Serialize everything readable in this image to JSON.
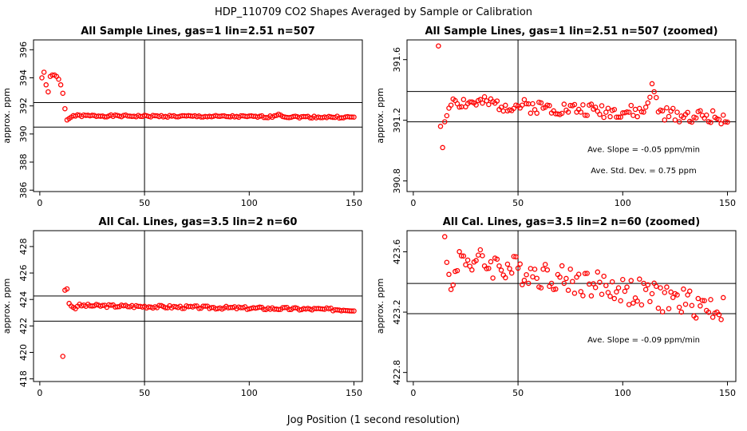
{
  "figure": {
    "title": "HDP_110709  CO2 Shapes Averaged by Sample or Calibration",
    "xlabel": "Jog Position (1 second resolution)"
  },
  "chart_data": [
    {
      "type": "scatter",
      "title": "All Sample Lines, gas=1 lin=2.51 n=507",
      "xlabel": "Jog Position (1 second resolution)",
      "ylabel": "approx. ppm",
      "xlim": [
        -3,
        154
      ],
      "ylim": [
        385.9,
        396.7
      ],
      "xticks": [
        0,
        50,
        100,
        150
      ],
      "yticks": [
        386,
        388,
        390,
        392,
        394,
        396
      ],
      "ref_vline": 50,
      "ref_hlines": [
        390.49,
        392.24
      ],
      "series": [
        {
          "name": "sample",
          "color": "#ff0000",
          "x": [],
          "y": []
        }
      ],
      "seed": 1,
      "annotations": []
    },
    {
      "type": "scatter",
      "title": "All Sample Lines, gas=1 lin=2.51 n=507 (zoomed)",
      "xlabel": "Jog Position (1 second resolution)",
      "ylabel": "approx. ppm",
      "xlim": [
        -3,
        154
      ],
      "ylim": [
        390.73,
        391.73
      ],
      "xticks": [
        0,
        50,
        100,
        150
      ],
      "yticks": [
        390.8,
        391.2,
        391.6
      ],
      "ref_vline": 50,
      "ref_hlines": [
        391.19,
        391.39
      ],
      "series": [
        {
          "name": "sample-zoom",
          "color": "#ff0000",
          "x": [],
          "y": []
        }
      ],
      "seed": 2,
      "annotations": [
        {
          "text": "Ave. Slope =  -0.05  ppm/min",
          "x": 110,
          "y": 390.99
        },
        {
          "text": "Ave. Std. Dev. =  0.75  ppm",
          "x": 110,
          "y": 390.85
        }
      ]
    },
    {
      "type": "scatter",
      "title": "All Cal. Lines, gas=3.5 lin=2 n=60",
      "xlabel": "Jog Position (1 second resolution)",
      "ylabel": "approx. ppm",
      "xlim": [
        -3,
        154
      ],
      "ylim": [
        417.8,
        429.2
      ],
      "xticks": [
        0,
        50,
        100,
        150
      ],
      "yticks": [
        418,
        420,
        422,
        424,
        426,
        428
      ],
      "ref_vline": 50,
      "ref_hlines": [
        422.36,
        424.26
      ],
      "series": [
        {
          "name": "cal",
          "color": "#ff0000",
          "x": [],
          "y": []
        }
      ],
      "seed": 3,
      "annotations": []
    },
    {
      "type": "scatter",
      "title": "All Cal. Lines, gas=3.5 lin=2 n=60 (zoomed)",
      "xlabel": "Jog Position (1 second resolution)",
      "ylabel": "approx. ppm",
      "xlim": [
        -3,
        154
      ],
      "ylim": [
        422.74,
        423.74
      ],
      "xticks": [
        0,
        50,
        100,
        150
      ],
      "yticks": [
        422.8,
        423.2,
        423.6
      ],
      "ref_vline": 50,
      "ref_hlines": [
        423.19,
        423.39
      ],
      "series": [
        {
          "name": "cal-zoom",
          "color": "#ff0000",
          "x": [],
          "y": []
        }
      ],
      "seed": 4,
      "annotations": [
        {
          "text": "Ave. Slope =  -0.09  ppm/min",
          "x": 110,
          "y": 423.0
        }
      ]
    }
  ]
}
